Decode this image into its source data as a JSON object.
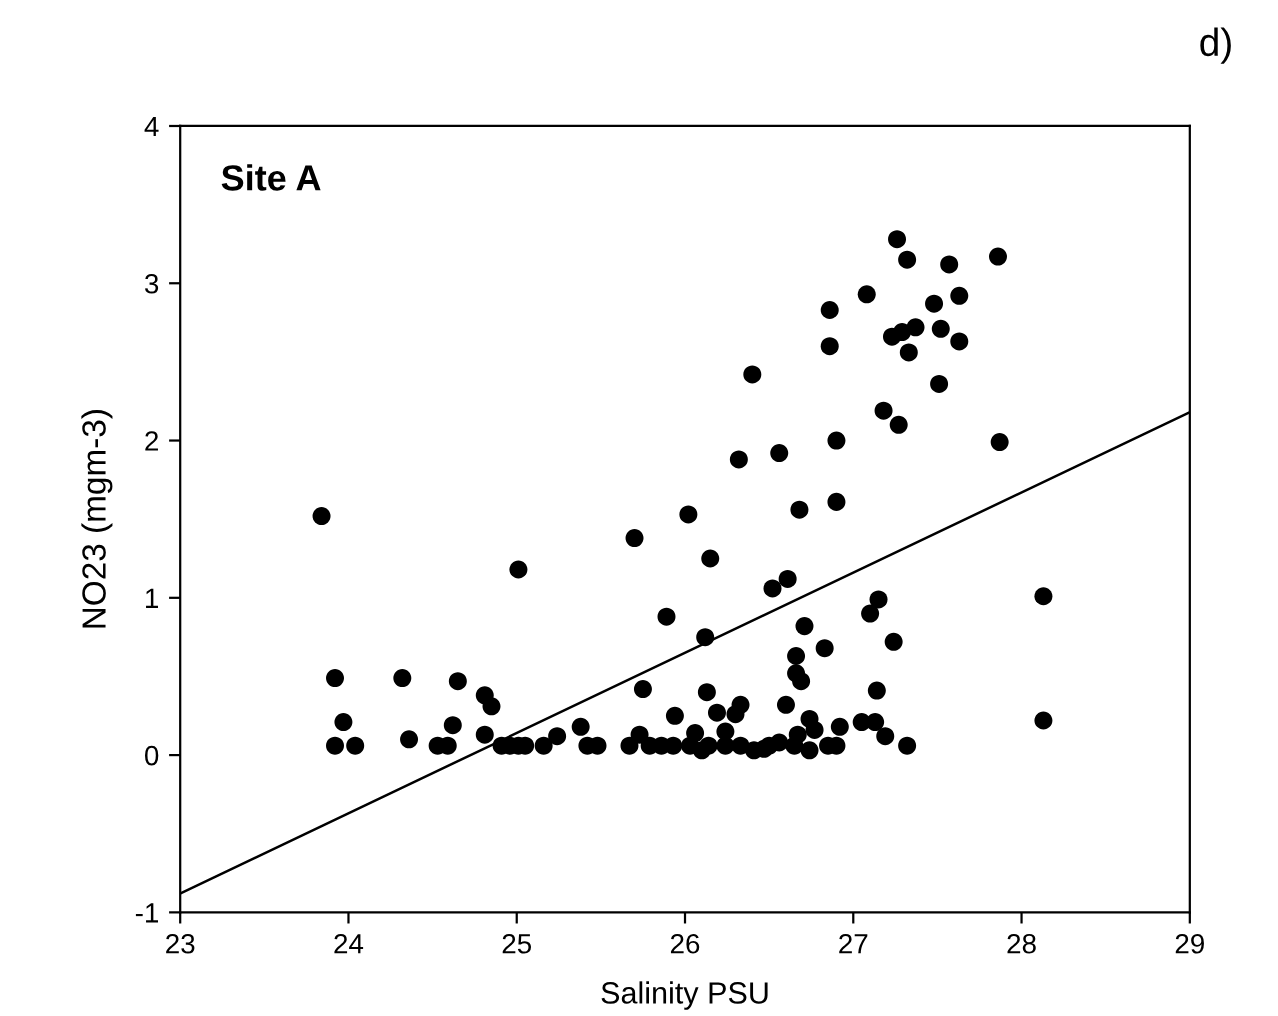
{
  "chart_data": {
    "type": "scatter",
    "xlabel": "Salinity PSU",
    "ylabel": "NO23 (mgm-3)",
    "annotations": [
      "Site A",
      "d)"
    ],
    "xlim": [
      23,
      29
    ],
    "xticks": [
      23,
      24,
      25,
      26,
      27,
      28,
      29
    ],
    "ylim": [
      -1,
      4
    ],
    "yticks": [
      -1,
      0,
      1,
      2,
      3,
      4
    ],
    "grid": false,
    "series": [
      {
        "color": "#000000",
        "marker": "circle",
        "x": [
          23.84,
          23.92,
          23.92,
          23.97,
          24.04,
          24.32,
          24.36,
          24.53,
          24.59,
          24.62,
          24.65,
          24.81,
          24.85,
          24.81,
          24.91,
          24.96,
          25.01,
          25.05,
          25.01,
          25.16,
          25.24,
          25.38,
          25.42,
          25.48,
          25.67,
          25.7,
          25.73,
          25.75,
          25.79,
          25.86,
          25.89,
          25.94,
          25.93,
          26.02,
          26.03,
          26.06,
          26.1,
          26.14,
          26.12,
          26.13,
          26.15,
          26.19,
          26.24,
          26.24,
          26.3,
          26.33,
          26.32,
          26.33,
          26.4,
          26.41,
          26.47,
          26.5,
          26.52,
          26.56,
          26.56,
          26.6,
          26.61,
          26.65,
          26.66,
          26.66,
          26.68,
          26.67,
          26.69,
          26.71,
          26.74,
          26.74,
          26.77,
          26.83,
          26.86,
          26.86,
          26.85,
          26.9,
          26.9,
          26.9,
          26.92,
          27.05,
          27.08,
          27.1,
          27.13,
          27.14,
          27.15,
          27.18,
          27.19,
          27.23,
          27.24,
          27.26,
          27.27,
          27.29,
          27.32,
          27.32,
          27.33,
          27.37,
          27.48,
          27.51,
          27.52,
          27.57,
          27.63,
          27.63,
          27.86,
          27.87,
          28.13,
          28.13
        ],
        "values": [
          1.52,
          0.49,
          0.06,
          0.21,
          0.06,
          0.49,
          0.1,
          0.06,
          0.06,
          0.19,
          0.47,
          0.38,
          0.31,
          0.13,
          0.06,
          0.06,
          0.06,
          0.06,
          1.18,
          0.06,
          0.12,
          0.18,
          0.06,
          0.06,
          0.06,
          1.38,
          0.13,
          0.42,
          0.06,
          0.06,
          0.88,
          0.25,
          0.06,
          1.53,
          0.06,
          0.14,
          0.03,
          0.06,
          0.75,
          0.4,
          1.25,
          0.27,
          0.15,
          0.06,
          0.26,
          0.32,
          1.88,
          0.06,
          2.42,
          0.03,
          0.04,
          0.06,
          1.06,
          1.92,
          0.08,
          0.32,
          1.12,
          0.06,
          0.63,
          0.52,
          1.56,
          0.13,
          0.47,
          0.82,
          0.23,
          0.03,
          0.16,
          0.68,
          2.6,
          2.83,
          0.06,
          0.06,
          2.0,
          1.61,
          0.18,
          0.21,
          2.93,
          0.9,
          0.21,
          0.41,
          0.99,
          2.19,
          0.12,
          2.66,
          0.72,
          3.28,
          2.1,
          2.69,
          3.15,
          0.06,
          2.56,
          2.72,
          2.87,
          2.36,
          2.71,
          3.12,
          2.92,
          2.63,
          3.17,
          1.99,
          1.01,
          0.22
        ]
      },
      {
        "type": "line",
        "color": "#000000",
        "x": [
          23,
          29
        ],
        "values": [
          -0.88,
          2.18
        ],
        "marker": "none",
        "line_style": "solid"
      }
    ]
  }
}
